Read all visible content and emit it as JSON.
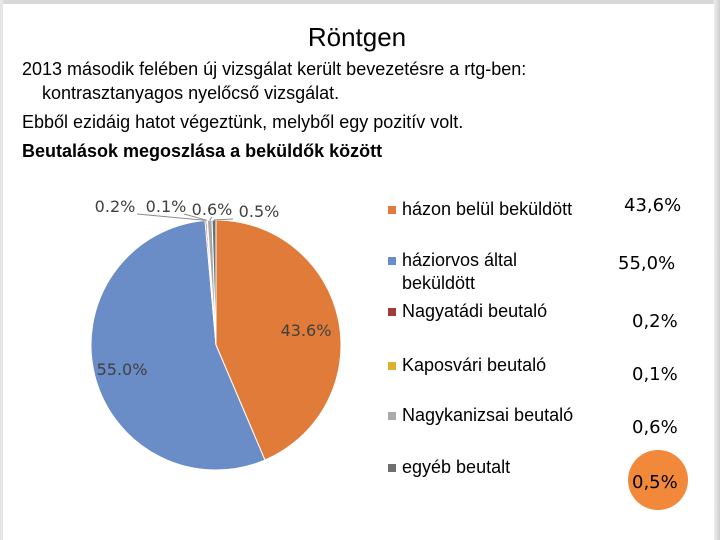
{
  "slide": {
    "title": "Röntgen",
    "line1": "2013 második felében új vizsgálat került bevezetésre a rtg-ben:",
    "line2": "kontrasztanyagos nyelőcső vizsgálat.",
    "line3": "Ebből ezidáig hatot végeztünk, melyből egy pozitív volt.",
    "line4": "Beutalások megoszlása a beküldők között"
  },
  "legend": {
    "items": [
      {
        "label": "házon belül beküldött",
        "color": "#e07b39"
      },
      {
        "label": "háziorvos által beküldött",
        "color": "#6a8cc7"
      },
      {
        "label": "Nagyatádi beutaló",
        "color": "#a33b36"
      },
      {
        "label": "Kaposvári beutaló",
        "color": "#d9b32c"
      },
      {
        "label": "Nagykanizsai beutaló",
        "color": "#a9a9a9"
      },
      {
        "label": "egyéb beutalt",
        "color": "#6f6f6f"
      }
    ]
  },
  "side_values": [
    "43,6%",
    "55,0%",
    "0,2%",
    "0,1%",
    "0,6%",
    "0,5%"
  ],
  "chart_data": {
    "type": "pie",
    "categories": [
      "házon belül beküldött",
      "háziorvos által beküldött",
      "Nagyatádi beutaló",
      "Kaposvári beutaló",
      "Nagykanizsai beutaló",
      "egyéb beutalt"
    ],
    "values": [
      43.6,
      55.0,
      0.2,
      0.1,
      0.6,
      0.5
    ],
    "data_labels": [
      "43.6%",
      "55.0%",
      "0.2%",
      "0.1%",
      "0.6%",
      "0.5%"
    ],
    "colors": [
      "#e07b39",
      "#6a8cc7",
      "#a33b36",
      "#d9b32c",
      "#a9a9a9",
      "#6f6f6f"
    ],
    "legend_position": "right"
  }
}
